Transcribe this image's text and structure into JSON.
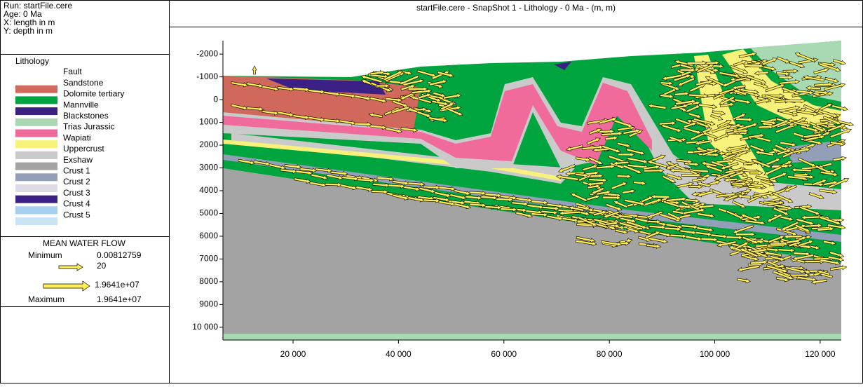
{
  "info": [
    "Run: startFile.cere",
    "Age: 0 Ma",
    "X: length in m",
    "Y: depth in m"
  ],
  "lithology": {
    "title": "Lithology",
    "items": [
      {
        "name": "Fault"
      },
      {
        "name": "Sandstone",
        "color": "#d0685c"
      },
      {
        "name": "Dolomite tertiary",
        "color": "#00a540"
      },
      {
        "name": "Mannville",
        "color": "#3b2185"
      },
      {
        "name": "Blackstones",
        "color": "#a9d9b2"
      },
      {
        "name": "Trias Jurassic",
        "color": "#f06a9c"
      },
      {
        "name": "Wapiati",
        "color": "#f8f27a"
      },
      {
        "name": "Uppercrust",
        "color": "#cacaca"
      },
      {
        "name": "Exshaw",
        "color": "#a3a3a3"
      },
      {
        "name": "Crust 1",
        "color": "#939fb7"
      },
      {
        "name": "Crust 2",
        "color": "#dcdbe6"
      },
      {
        "name": "Crust 3",
        "color": "#3b2185"
      },
      {
        "name": "Crust 4",
        "color": "#a6cff0"
      },
      {
        "name": "Crust 5",
        "color": "#c9e4f4"
      }
    ]
  },
  "flow": {
    "title": "MEAN WATER FLOW",
    "min_label": "Minimum",
    "min": "0.00812759",
    "small": "20",
    "large": "1.9641e+07",
    "max_label": "Maximum",
    "max": "1.9641e+07"
  },
  "plot": {
    "title": "startFile.cere - SnapShot  1 - Lithology - 0 Ma - (m, m)",
    "xlim": [
      6700,
      124000
    ],
    "ylim": [
      -2590,
      10560
    ],
    "xticks": [
      {
        "value": 20000,
        "label": "20 000"
      },
      {
        "value": 40000,
        "label": "40 000"
      },
      {
        "value": 60000,
        "label": "60 000"
      },
      {
        "value": 80000,
        "label": "80 000"
      },
      {
        "value": 100000,
        "label": "100 000"
      },
      {
        "value": 120000,
        "label": "120 000"
      }
    ],
    "yticks": [
      -2000,
      -1000,
      0,
      1000,
      2000,
      3000,
      4000,
      5000,
      6000,
      7000,
      8000,
      9000,
      {
        "value": 10000,
        "label": "10 000"
      }
    ]
  }
}
